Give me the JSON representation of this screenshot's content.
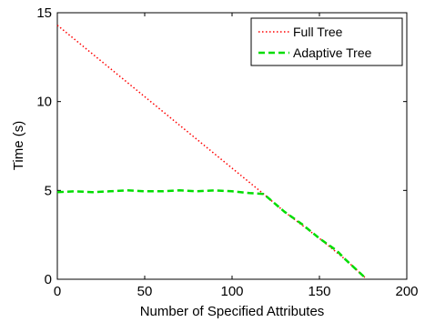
{
  "chart_data": {
    "type": "line",
    "title": "",
    "xlabel": "Number of Specified Attributes",
    "ylabel": "Time (s)",
    "xlim": [
      0,
      200
    ],
    "ylim": [
      0,
      15
    ],
    "xticks": [
      0,
      50,
      100,
      150,
      200
    ],
    "yticks": [
      0,
      5,
      10,
      15
    ],
    "grid": false,
    "legend_position": "top-right",
    "series": [
      {
        "name": "Full Tree",
        "color": "#ff0000",
        "line_style": "dotted",
        "points": [
          [
            0,
            14.3
          ],
          [
            118,
            4.8
          ],
          [
            130,
            3.8
          ],
          [
            150,
            2.3
          ],
          [
            165,
            1.1
          ],
          [
            176,
            0.1
          ]
        ]
      },
      {
        "name": "Adaptive Tree",
        "color": "#00dd00",
        "line_style": "dashed",
        "points": [
          [
            0,
            4.9
          ],
          [
            10,
            4.95
          ],
          [
            20,
            4.9
          ],
          [
            30,
            4.95
          ],
          [
            40,
            5.0
          ],
          [
            50,
            4.95
          ],
          [
            60,
            4.95
          ],
          [
            70,
            5.0
          ],
          [
            80,
            4.95
          ],
          [
            90,
            5.0
          ],
          [
            100,
            4.95
          ],
          [
            110,
            4.85
          ],
          [
            118,
            4.8
          ],
          [
            130,
            3.8
          ],
          [
            140,
            3.1
          ],
          [
            150,
            2.3
          ],
          [
            160,
            1.6
          ],
          [
            165,
            1.1
          ],
          [
            176,
            0.1
          ]
        ]
      }
    ]
  }
}
